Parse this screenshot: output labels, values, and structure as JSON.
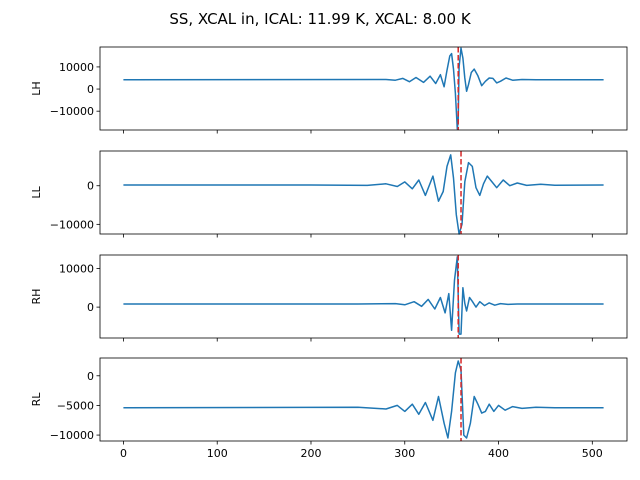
{
  "figure": {
    "title": "SS, XCAL in, ICAL: 11.99 K, XCAL: 8.00 K"
  },
  "colors": {
    "series": "#1f77b4",
    "marker": "#d62728",
    "axes": "#000000",
    "background": "#ffffff"
  },
  "chart_data": [
    {
      "type": "line",
      "ylabel": "LH",
      "xlim": [
        -25,
        537
      ],
      "ylim": [
        -18500,
        19000
      ],
      "xticks": [
        0,
        100,
        200,
        300,
        400,
        500
      ],
      "show_xtick_labels": false,
      "yticks": [
        -10000,
        0,
        10000
      ],
      "ytick_labels": [
        "−10000",
        "0",
        "10000"
      ],
      "marker_x": 357,
      "series": [
        {
          "baseline": 4200,
          "x": [
            0,
            280,
            290,
            298,
            305,
            312,
            320,
            327,
            333,
            338,
            342,
            345,
            348,
            350,
            352,
            354,
            356,
            357,
            358,
            360,
            362,
            364,
            366,
            368,
            371,
            374,
            378,
            382,
            386,
            390,
            394,
            398,
            402,
            408,
            415,
            425,
            440,
            512
          ],
          "y": [
            4200,
            4300,
            4000,
            4800,
            3300,
            5200,
            3000,
            5800,
            2500,
            6500,
            1000,
            8500,
            15000,
            16000,
            9000,
            -2000,
            -18000,
            -14000,
            10000,
            18500,
            14000,
            5000,
            -1000,
            2000,
            7500,
            9000,
            6000,
            1500,
            3500,
            5000,
            4800,
            2800,
            3500,
            5000,
            4000,
            4300,
            4200,
            4200
          ]
        }
      ]
    },
    {
      "type": "line",
      "ylabel": "LL",
      "xlim": [
        -25,
        537
      ],
      "ylim": [
        -12500,
        9000
      ],
      "xticks": [
        0,
        100,
        200,
        300,
        400,
        500
      ],
      "show_xtick_labels": false,
      "yticks": [
        -10000,
        0
      ],
      "ytick_labels": [
        "−10000",
        "0"
      ],
      "marker_x": 360,
      "series": [
        {
          "baseline": 200,
          "x": [
            0,
            200,
            260,
            280,
            292,
            300,
            308,
            315,
            322,
            330,
            336,
            341,
            345,
            349,
            352,
            355,
            358,
            361,
            364,
            368,
            372,
            376,
            380,
            384,
            388,
            393,
            398,
            405,
            412,
            420,
            430,
            445,
            460,
            512
          ],
          "y": [
            200,
            200,
            100,
            500,
            -200,
            1000,
            -800,
            1500,
            -2500,
            2500,
            -4000,
            -1500,
            5000,
            8000,
            2000,
            -7500,
            -12500,
            -10000,
            1000,
            6000,
            5000,
            -500,
            -2500,
            500,
            2500,
            1000,
            -500,
            1500,
            0,
            700,
            100,
            400,
            150,
            200
          ]
        }
      ]
    },
    {
      "type": "line",
      "ylabel": "RH",
      "xlim": [
        -25,
        537
      ],
      "ylim": [
        -8000,
        13500
      ],
      "xticks": [
        0,
        100,
        200,
        300,
        400,
        500
      ],
      "show_xtick_labels": false,
      "yticks": [
        0,
        10000
      ],
      "ytick_labels": [
        "0",
        "10000"
      ],
      "marker_x": 357,
      "series": [
        {
          "baseline": 800,
          "x": [
            0,
            250,
            290,
            300,
            310,
            318,
            325,
            332,
            338,
            343,
            347,
            350,
            353,
            356,
            358,
            360,
            362,
            364,
            366,
            369,
            372,
            376,
            380,
            385,
            390,
            396,
            402,
            410,
            420,
            435,
            512
          ],
          "y": [
            800,
            800,
            900,
            600,
            1400,
            200,
            2000,
            -500,
            2500,
            -1500,
            3500,
            -6000,
            7000,
            13000,
            -7000,
            -7000,
            5000,
            1000,
            -1000,
            2500,
            1500,
            0,
            1400,
            400,
            1100,
            500,
            900,
            700,
            800,
            800,
            800
          ]
        }
      ]
    },
    {
      "type": "line",
      "ylabel": "RL",
      "xlim": [
        -25,
        537
      ],
      "ylim": [
        -11000,
        3000
      ],
      "xticks": [
        0,
        100,
        200,
        300,
        400,
        500
      ],
      "xtick_labels": [
        "0",
        "100",
        "200",
        "300",
        "400",
        "500"
      ],
      "show_xtick_labels": true,
      "yticks": [
        -10000,
        -5000,
        0
      ],
      "ytick_labels": [
        "−10000",
        "−5000",
        "0"
      ],
      "marker_x": 360,
      "series": [
        {
          "baseline": -5400,
          "x": [
            0,
            250,
            280,
            292,
            300,
            308,
            315,
            322,
            330,
            336,
            342,
            346,
            350,
            354,
            357,
            360,
            363,
            366,
            370,
            374,
            378,
            382,
            386,
            390,
            395,
            400,
            407,
            415,
            425,
            440,
            460,
            512
          ],
          "y": [
            -5400,
            -5300,
            -5600,
            -5000,
            -6000,
            -4800,
            -6500,
            -4500,
            -7500,
            -3500,
            -8000,
            -10500,
            -6000,
            500,
            2500,
            1000,
            -10000,
            -10500,
            -8000,
            -3500,
            -4800,
            -6300,
            -6000,
            -4800,
            -6000,
            -5000,
            -5800,
            -5200,
            -5500,
            -5300,
            -5400,
            -5400
          ]
        }
      ]
    }
  ]
}
